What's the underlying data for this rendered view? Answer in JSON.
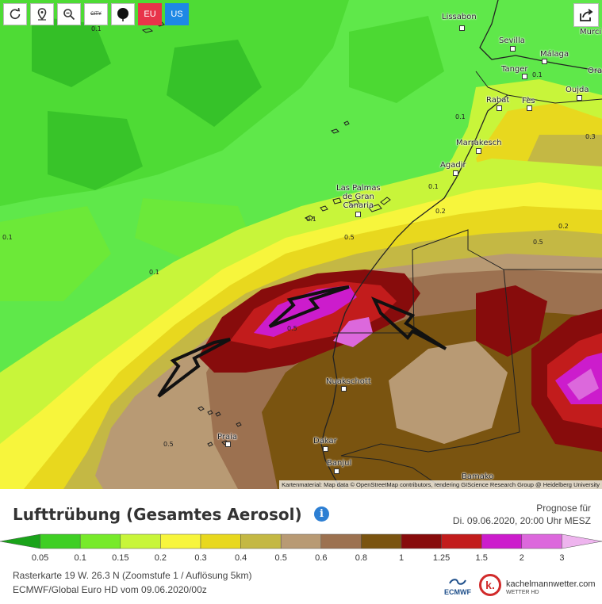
{
  "toolbar": {
    "buttons": [
      {
        "name": "refresh",
        "icon": "refresh-icon"
      },
      {
        "name": "location",
        "icon": "pin-icon"
      },
      {
        "name": "zoom",
        "icon": "zoom-icon"
      },
      {
        "name": "city",
        "label": "CITY"
      },
      {
        "name": "marker",
        "icon": "marker-icon"
      },
      {
        "name": "eu",
        "label": "EU",
        "color": "#e8334a"
      },
      {
        "name": "us",
        "label": "US",
        "color": "#1e88e5"
      }
    ],
    "share_icon": "share-icon"
  },
  "cities": [
    {
      "id": "lissabon",
      "label": "Lissabon"
    },
    {
      "id": "sevilla",
      "label": "Sevilla"
    },
    {
      "id": "malaga",
      "label": "Málaga"
    },
    {
      "id": "murcia",
      "label": "Murci"
    },
    {
      "id": "tanger",
      "label": "Tanger"
    },
    {
      "id": "oran",
      "label": "Ora"
    },
    {
      "id": "rabat",
      "label": "Rabat"
    },
    {
      "id": "fes",
      "label": "Fès"
    },
    {
      "id": "oujda",
      "label": "Oujda"
    },
    {
      "id": "marrakesch",
      "label": "Marrakesch"
    },
    {
      "id": "agadir",
      "label": "Agadir"
    },
    {
      "id": "laspalmas",
      "label": "Las Palmas\nde Gran\nCanaria"
    },
    {
      "id": "nuakschott",
      "label": "Nuakschott"
    },
    {
      "id": "praia",
      "label": "Praia"
    },
    {
      "id": "dakar",
      "label": "Dakar"
    },
    {
      "id": "banjul",
      "label": "Banjul"
    },
    {
      "id": "bamako",
      "label": "Bamako"
    }
  ],
  "contour_labels": [
    "0.1",
    "0.1",
    "0.1",
    "0.1",
    "0.1",
    "0.1",
    "0.1",
    "0.2",
    "0.2",
    "0.3",
    "0.5",
    "0.5",
    "0.5",
    "0.5"
  ],
  "attribution": "Kartenmaterial: Map data © OpenStreetMap contributors, rendering GIScience Research Group @ Heidelberg University",
  "title": "Lufttrübung (Gesamtes Aerosol)",
  "info_icon": "info-icon",
  "forecast": {
    "label": "Prognose für",
    "time": "Di. 09.06.2020, 20:00 Uhr MESZ"
  },
  "legend": {
    "labels": [
      "0.05",
      "0.1",
      "0.15",
      "0.2",
      "0.3",
      "0.4",
      "0.5",
      "0.6",
      "0.8",
      "1",
      "1.25",
      "1.5",
      "2",
      "3"
    ],
    "colors": [
      "#1aa31a",
      "#3fcf24",
      "#77ea2a",
      "#c8f53a",
      "#f7f53c",
      "#e8d81e",
      "#c4b844",
      "#b89a74",
      "#9c7150",
      "#7a5410",
      "#870c0c",
      "#c21c1c",
      "#cc1ccc",
      "#dc68dc",
      "#eeb4ee"
    ]
  },
  "meta": {
    "line1": "Rasterkarte 19 W. 26.3 N  (Zoomstufe 1 / Auflösung 5km)",
    "line2": "ECMWF/Global Euro HD vom 09.06.2020/00z"
  },
  "logos": {
    "ecmwf": "ECMWF",
    "km_letter": "k.",
    "km_name": "kachelmannwetter.com",
    "km_sub": "WETTER HD"
  }
}
